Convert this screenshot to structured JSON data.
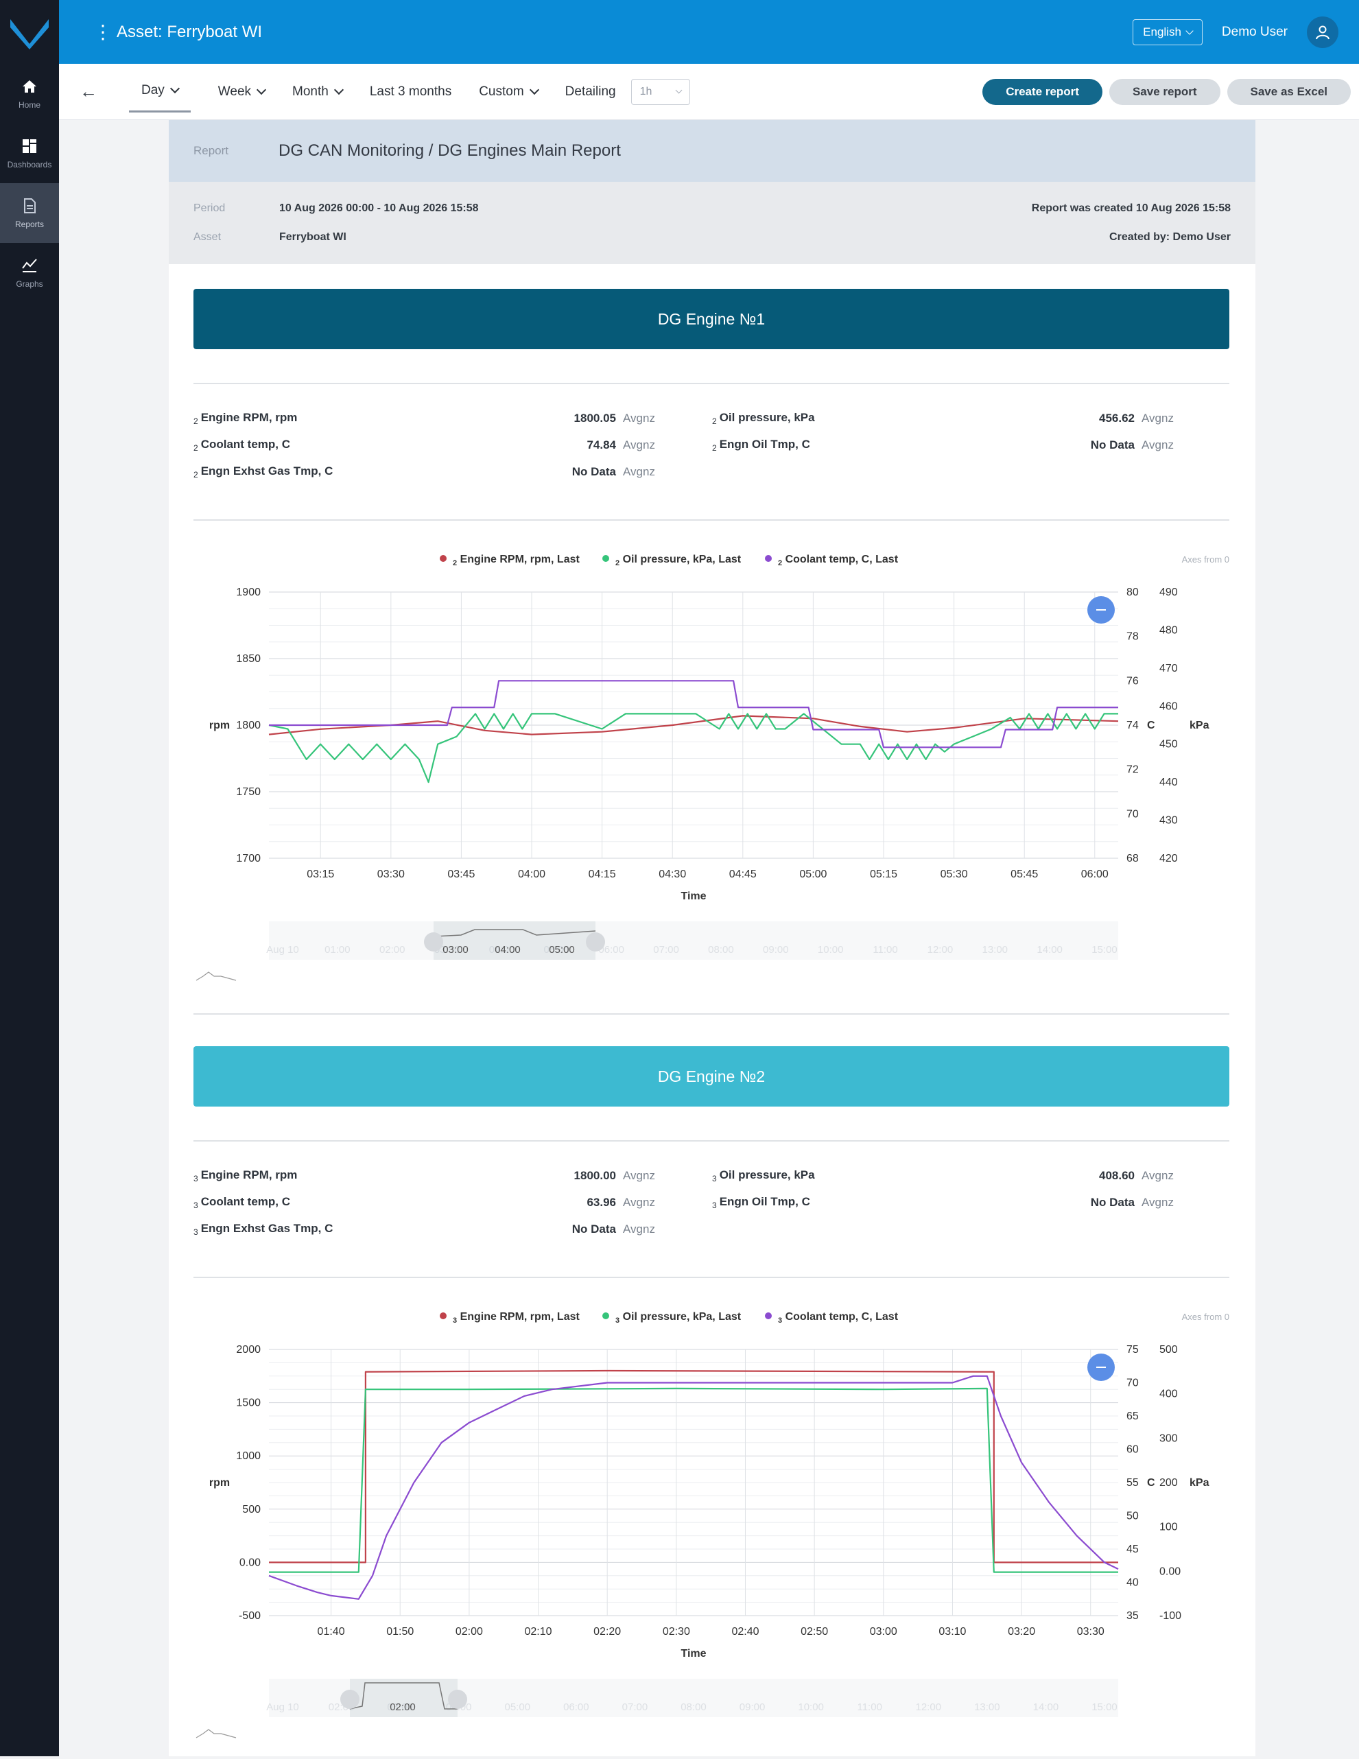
{
  "nav": {
    "items": [
      {
        "label": "Home",
        "icon": "home-icon"
      },
      {
        "label": "Dashboards",
        "icon": "dashboards-icon"
      },
      {
        "label": "Reports",
        "icon": "reports-icon"
      },
      {
        "label": "Graphs",
        "icon": "graphs-icon"
      }
    ]
  },
  "topbar": {
    "asset_title": "Asset: Ferryboat WI",
    "language": "English",
    "user": "Demo User"
  },
  "toolbar": {
    "periods": [
      "Day",
      "Week",
      "Month",
      "Last 3 months",
      "Custom"
    ],
    "detailing_label": "Detailing",
    "detailing_value": "1h",
    "create_report": "Create report",
    "save_report": "Save report",
    "save_excel": "Save as Excel"
  },
  "report": {
    "report_label": "Report",
    "title": "DG CAN Monitoring / DG Engines Main Report",
    "period_label": "Period",
    "period_value": "10 Aug 2026 00:00 - 10 Aug 2026 15:58",
    "asset_label": "Asset",
    "asset_value": "Ferryboat WI",
    "created": "Report was created 10 Aug 2026 15:58",
    "created_by": "Created by: Demo User"
  },
  "engines": [
    {
      "title": "DG Engine №1",
      "banner_color": "#065a78",
      "kpis": [
        {
          "sub": "2",
          "name": "Engine RPM, rpm",
          "value": "1800.05",
          "agg": "Avgnz"
        },
        {
          "sub": "2",
          "name": "Oil pressure, kPa",
          "value": "456.62",
          "agg": "Avgnz"
        },
        {
          "sub": "2",
          "name": "Coolant temp, C",
          "value": "74.84",
          "agg": "Avgnz"
        },
        {
          "sub": "2",
          "name": "Engn Oil Tmp, C",
          "value": "No Data",
          "agg": "Avgnz"
        },
        {
          "sub": "2",
          "name": "Engn Exhst Gas Tmp, C",
          "value": "No Data",
          "agg": "Avgnz"
        }
      ],
      "legend": [
        {
          "sub": "2",
          "name": "Engine RPM, rpm, Last",
          "color": "#c0424a"
        },
        {
          "sub": "2",
          "name": "Oil pressure, kPa, Last",
          "color": "#35c47a"
        },
        {
          "sub": "2",
          "name": "Coolant temp, C, Last",
          "color": "#8b4bd0"
        }
      ],
      "axes_note": "Axes from 0",
      "x_title": "Time",
      "y_left_unit": "rpm",
      "y_mid_unit": "C",
      "y_right_unit": "kPa",
      "navigator_labels": [
        "Aug 10",
        "01:00",
        "02:00",
        "03:00",
        "04:00",
        "05:00",
        "06:00",
        "07:00",
        "08:00",
        "09:00",
        "10:00",
        "11:00",
        "12:00",
        "13:00",
        "14:00",
        "15:00"
      ]
    },
    {
      "title": "DG Engine №2",
      "banner_color": "#3dbad1",
      "kpis": [
        {
          "sub": "3",
          "name": "Engine RPM, rpm",
          "value": "1800.00",
          "agg": "Avgnz"
        },
        {
          "sub": "3",
          "name": "Oil pressure, kPa",
          "value": "408.60",
          "agg": "Avgnz"
        },
        {
          "sub": "3",
          "name": "Coolant temp, C",
          "value": "63.96",
          "agg": "Avgnz"
        },
        {
          "sub": "3",
          "name": "Engn Oil Tmp, C",
          "value": "No Data",
          "agg": "Avgnz"
        },
        {
          "sub": "3",
          "name": "Engn Exhst Gas Tmp, C",
          "value": "No Data",
          "agg": "Avgnz"
        }
      ],
      "legend": [
        {
          "sub": "3",
          "name": "Engine RPM, rpm, Last",
          "color": "#c0424a"
        },
        {
          "sub": "3",
          "name": "Oil pressure, kPa, Last",
          "color": "#35c47a"
        },
        {
          "sub": "3",
          "name": "Coolant temp, C, Last",
          "color": "#8b4bd0"
        }
      ],
      "axes_note": "Axes from 0",
      "x_title": "Time",
      "y_left_unit": "rpm",
      "y_mid_unit": "C",
      "y_right_unit": "kPa",
      "navigator_labels": [
        "Aug 10",
        "02:00",
        "03:00",
        "04:00",
        "05:00",
        "06:00",
        "07:00",
        "08:00",
        "09:00",
        "10:00",
        "11:00",
        "12:00",
        "13:00",
        "14:00",
        "15:00"
      ]
    }
  ],
  "chart_data": [
    {
      "type": "line",
      "x_ticks": [
        "03:15",
        "03:30",
        "03:45",
        "04:00",
        "04:15",
        "04:30",
        "04:45",
        "05:00",
        "05:15",
        "05:30",
        "05:45",
        "06:00"
      ],
      "x_range": [
        "03:04",
        "06:05"
      ],
      "y_left": {
        "unit": "rpm",
        "ticks": [
          1700,
          1750,
          1800,
          1850,
          1900
        ],
        "range": [
          1700,
          1900
        ]
      },
      "y_mid": {
        "unit": "C",
        "ticks": [
          68,
          70,
          72,
          74,
          76,
          78,
          80
        ],
        "range": [
          68,
          80
        ]
      },
      "y_right": {
        "unit": "kPa",
        "ticks": [
          420,
          430,
          440,
          450,
          460,
          470,
          480,
          490
        ],
        "range": [
          420,
          490
        ]
      },
      "series": [
        {
          "name": "Engine RPM, rpm, Last",
          "axis": "left",
          "color": "#c0424a",
          "x": [
            "03:04",
            "03:15",
            "03:30",
            "03:40",
            "03:50",
            "04:00",
            "04:15",
            "04:30",
            "04:45",
            "05:00",
            "05:10",
            "05:20",
            "05:30",
            "05:45",
            "06:05"
          ],
          "values": [
            1793,
            1797,
            1800,
            1803,
            1796,
            1793,
            1795,
            1800,
            1807,
            1805,
            1799,
            1795,
            1798,
            1805,
            1803
          ]
        },
        {
          "name": "Oil pressure, kPa, Last",
          "axis": "right",
          "color": "#35c47a",
          "x": [
            "03:04",
            "03:08",
            "03:10",
            "03:12",
            "03:15",
            "03:18",
            "03:21",
            "03:24",
            "03:27",
            "03:30",
            "03:33",
            "03:36",
            "03:38",
            "03:40",
            "03:44",
            "03:48",
            "03:50",
            "03:52",
            "03:54",
            "03:56",
            "03:58",
            "04:00",
            "04:02",
            "04:05",
            "04:15",
            "04:20",
            "04:30",
            "04:35",
            "04:40",
            "04:42",
            "04:44",
            "04:46",
            "04:48",
            "04:50",
            "04:52",
            "04:54",
            "04:58",
            "05:02",
            "05:06",
            "05:10",
            "05:12",
            "05:14",
            "05:16",
            "05:18",
            "05:20",
            "05:22",
            "05:24",
            "05:26",
            "05:28",
            "05:30",
            "05:34",
            "05:38",
            "05:42",
            "05:44",
            "05:46",
            "05:48",
            "05:50",
            "05:52",
            "05:54",
            "05:56",
            "05:58",
            "06:00",
            "06:02",
            "06:05"
          ],
          "values": [
            455,
            454,
            450,
            446,
            450,
            446,
            450,
            446,
            450,
            446,
            450,
            446,
            440,
            450,
            452,
            458,
            454,
            458,
            454,
            458,
            454,
            458,
            458,
            458,
            454,
            458,
            458,
            458,
            454,
            458,
            454,
            458,
            454,
            458,
            454,
            454,
            458,
            454,
            450,
            450,
            446,
            450,
            446,
            450,
            446,
            450,
            446,
            450,
            448,
            450,
            452,
            454,
            457,
            454,
            458,
            454,
            458,
            454,
            458,
            454,
            458,
            454,
            458,
            458
          ]
        },
        {
          "name": "Coolant temp, C, Last",
          "axis": "mid",
          "color": "#8b4bd0",
          "x": [
            "03:04",
            "03:42",
            "03:43",
            "03:52",
            "03:53",
            "04:43",
            "04:44",
            "04:59",
            "05:00",
            "05:14",
            "05:15",
            "05:40",
            "05:41",
            "05:51",
            "05:52",
            "06:05"
          ],
          "values": [
            74,
            74,
            74.8,
            74.8,
            76,
            76,
            74.8,
            74.8,
            73.8,
            73.8,
            73,
            73,
            73.8,
            73.8,
            74.8,
            74.8
          ]
        }
      ]
    },
    {
      "type": "line",
      "x_ticks": [
        "01:40",
        "01:50",
        "02:00",
        "02:10",
        "02:20",
        "02:30",
        "02:40",
        "02:50",
        "03:00",
        "03:10",
        "03:20",
        "03:30"
      ],
      "x_range": [
        "01:31",
        "03:34"
      ],
      "y_left": {
        "unit": "rpm",
        "ticks": [
          -500,
          0.0,
          500,
          1000,
          1500,
          2000
        ],
        "range": [
          -500,
          2000
        ]
      },
      "y_mid": {
        "unit": "C",
        "ticks": [
          35,
          40,
          45,
          50,
          55,
          60,
          65,
          70,
          75
        ],
        "range": [
          35,
          75
        ]
      },
      "y_right": {
        "unit": "kPa",
        "ticks": [
          -100,
          0.0,
          100,
          200,
          300,
          400,
          500
        ],
        "range": [
          -100,
          500
        ]
      },
      "series": [
        {
          "name": "Engine RPM, rpm, Last",
          "axis": "left",
          "color": "#c0424a",
          "x": [
            "01:31",
            "01:45",
            "01:45",
            "02:20",
            "03:15",
            "03:16",
            "03:16",
            "03:34"
          ],
          "values": [
            0,
            0,
            1790,
            1800,
            1790,
            1790,
            0,
            0
          ]
        },
        {
          "name": "Oil pressure, kPa, Last",
          "axis": "right",
          "color": "#35c47a",
          "x": [
            "01:31",
            "01:44",
            "01:45",
            "02:00",
            "02:30",
            "03:00",
            "03:15",
            "03:16",
            "03:34"
          ],
          "values": [
            -2,
            -2,
            410,
            410,
            412,
            410,
            412,
            -2,
            -2
          ]
        },
        {
          "name": "Coolant temp, C, Last",
          "axis": "mid",
          "color": "#8b4bd0",
          "x": [
            "01:31",
            "01:35",
            "01:38",
            "01:40",
            "01:44",
            "01:46",
            "01:48",
            "01:52",
            "01:56",
            "02:00",
            "02:04",
            "02:08",
            "02:12",
            "02:20",
            "02:40",
            "03:00",
            "03:10",
            "03:13",
            "03:15",
            "03:17",
            "03:20",
            "03:24",
            "03:28",
            "03:32",
            "03:34"
          ],
          "values": [
            41,
            39.5,
            38.5,
            38,
            37.5,
            41,
            47,
            55,
            61,
            64,
            66,
            68,
            69,
            70,
            70,
            70,
            70,
            71,
            71,
            65,
            58,
            52,
            47,
            43,
            42
          ]
        }
      ]
    }
  ]
}
